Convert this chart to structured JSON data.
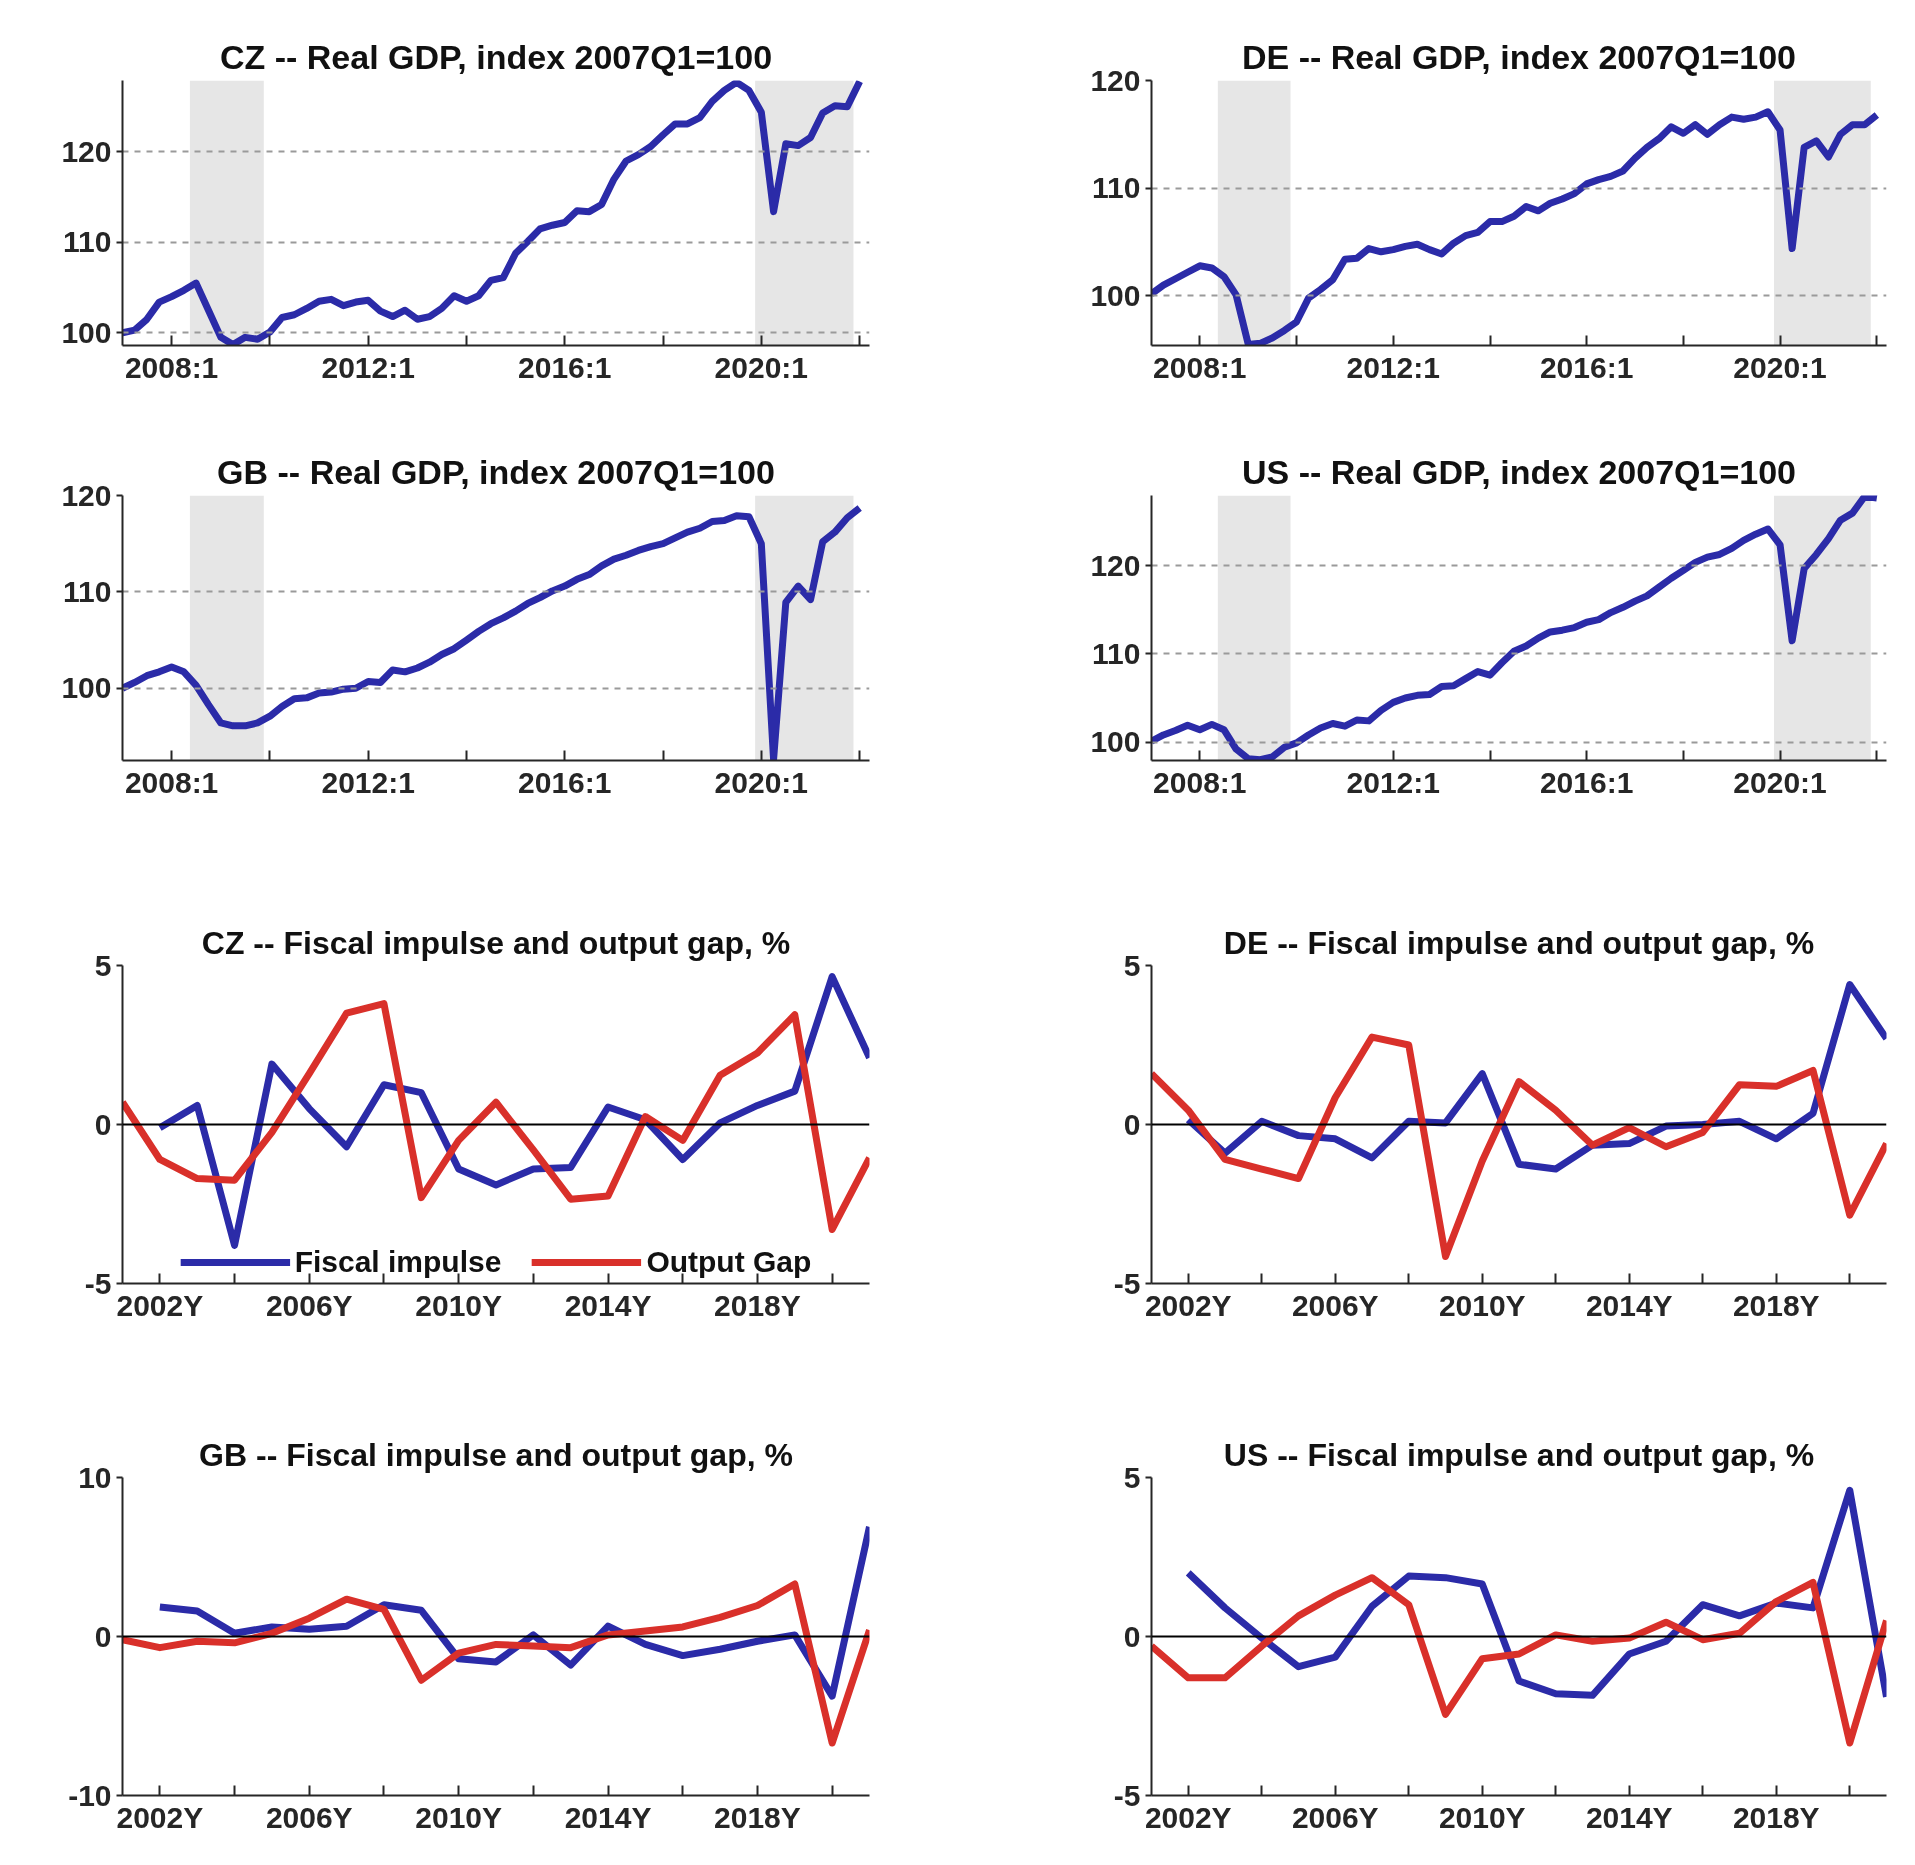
{
  "chart_data": [
    {
      "type": "line",
      "title": "CZ -- Real GDP, index 2007Q1=100",
      "grid": "y",
      "xlim": [
        "2007-01-01",
        "2022-03-15"
      ],
      "ylim": [
        98.6,
        127.9
      ],
      "yticks": [
        100,
        110,
        120
      ],
      "xticks": [
        {
          "value": "2008-01",
          "label": "2008:1"
        },
        {
          "value": "2010-01",
          "label": null
        },
        {
          "value": "2012-01",
          "label": "2012:1"
        },
        {
          "value": "2014-01",
          "label": null
        },
        {
          "value": "2016-01",
          "label": "2016:1"
        },
        {
          "value": "2018-01",
          "label": null
        },
        {
          "value": "2020-01",
          "label": "2020:1"
        },
        {
          "value": "2022-01",
          "label": null
        }
      ],
      "bands": [
        {
          "axis": "x",
          "from": "2008-05-16",
          "to": "2009-11-16",
          "color": "#e6e6e6"
        },
        {
          "axis": "x",
          "from": "2019-11-16",
          "to": "2021-11-16",
          "color": "#e6e6e6"
        }
      ],
      "x": [
        "2007-01",
        "2007-04",
        "2007-07",
        "2007-10",
        "2008-01",
        "2008-04",
        "2008-07",
        "2008-10",
        "2009-01",
        "2009-04",
        "2009-07",
        "2009-10",
        "2010-01",
        "2010-04",
        "2010-07",
        "2010-10",
        "2011-01",
        "2011-04",
        "2011-07",
        "2011-10",
        "2012-01",
        "2012-04",
        "2012-07",
        "2012-10",
        "2013-01",
        "2013-04",
        "2013-07",
        "2013-10",
        "2014-01",
        "2014-04",
        "2014-07",
        "2014-10",
        "2015-01",
        "2015-04",
        "2015-07",
        "2015-10",
        "2016-01",
        "2016-04",
        "2016-07",
        "2016-10",
        "2017-01",
        "2017-04",
        "2017-07",
        "2017-10",
        "2018-01",
        "2018-04",
        "2018-07",
        "2018-10",
        "2019-01",
        "2019-04",
        "2019-07",
        "2019-10",
        "2020-01",
        "2020-04",
        "2020-07",
        "2020-10",
        "2021-01",
        "2021-04",
        "2021-07",
        "2021-10",
        "2022-01"
      ],
      "series": [
        {
          "color": "#2b2ba8",
          "values": [
            100.0,
            100.3,
            101.5,
            103.4,
            104.0,
            104.7,
            105.5,
            102.5,
            99.5,
            98.7,
            99.5,
            99.3,
            100.1,
            101.7,
            102.0,
            102.7,
            103.5,
            103.7,
            103.0,
            103.4,
            103.6,
            102.4,
            101.8,
            102.5,
            101.5,
            101.8,
            102.7,
            104.1,
            103.5,
            104.1,
            105.8,
            106.1,
            108.8,
            110.1,
            111.5,
            111.9,
            112.2,
            113.5,
            113.4,
            114.2,
            117.0,
            119.0,
            119.7,
            120.6,
            121.9,
            123.1,
            123.1,
            123.8,
            125.6,
            126.8,
            127.7,
            126.8,
            124.4,
            113.4,
            120.9,
            120.7,
            121.6,
            124.3,
            125.1,
            125.0,
            127.8
          ]
        }
      ]
    },
    {
      "type": "line",
      "title": "DE -- Real GDP, index 2007Q1=100",
      "grid": "y",
      "xlim": [
        "2007-01-01",
        "2022-03-15"
      ],
      "ylim": [
        95.4,
        120
      ],
      "yticks": [
        100,
        110,
        120
      ],
      "xticks": [
        {
          "value": "2008-01",
          "label": "2008:1"
        },
        {
          "value": "2010-01",
          "label": null
        },
        {
          "value": "2012-01",
          "label": "2012:1"
        },
        {
          "value": "2014-01",
          "label": null
        },
        {
          "value": "2016-01",
          "label": "2016:1"
        },
        {
          "value": "2018-01",
          "label": null
        },
        {
          "value": "2020-01",
          "label": "2020:1"
        },
        {
          "value": "2022-01",
          "label": null
        }
      ],
      "bands": [
        {
          "axis": "x",
          "from": "2008-05-16",
          "to": "2009-11-16",
          "color": "#e6e6e6"
        },
        {
          "axis": "x",
          "from": "2019-11-16",
          "to": "2021-11-16",
          "color": "#e6e6e6"
        }
      ],
      "x": [
        "2007-01",
        "2007-04",
        "2007-07",
        "2007-10",
        "2008-01",
        "2008-04",
        "2008-07",
        "2008-10",
        "2009-01",
        "2009-04",
        "2009-07",
        "2009-10",
        "2010-01",
        "2010-04",
        "2010-07",
        "2010-10",
        "2011-01",
        "2011-04",
        "2011-07",
        "2011-10",
        "2012-01",
        "2012-04",
        "2012-07",
        "2012-10",
        "2013-01",
        "2013-04",
        "2013-07",
        "2013-10",
        "2014-01",
        "2014-04",
        "2014-07",
        "2014-10",
        "2015-01",
        "2015-04",
        "2015-07",
        "2015-10",
        "2016-01",
        "2016-04",
        "2016-07",
        "2016-10",
        "2017-01",
        "2017-04",
        "2017-07",
        "2017-10",
        "2018-01",
        "2018-04",
        "2018-07",
        "2018-10",
        "2019-01",
        "2019-04",
        "2019-07",
        "2019-10",
        "2020-01",
        "2020-04",
        "2020-07",
        "2020-10",
        "2021-01",
        "2021-04",
        "2021-07",
        "2021-10",
        "2022-01"
      ],
      "series": [
        {
          "color": "#2b2ba8",
          "values": [
            100.2,
            101.0,
            101.6,
            102.2,
            102.8,
            102.6,
            101.8,
            100.1,
            95.5,
            95.6,
            96.1,
            96.8,
            97.6,
            99.8,
            100.6,
            101.5,
            103.4,
            103.5,
            104.4,
            104.1,
            104.3,
            104.6,
            104.8,
            104.3,
            103.9,
            104.9,
            105.6,
            105.9,
            106.9,
            106.9,
            107.4,
            108.3,
            107.9,
            108.6,
            109.0,
            109.5,
            110.4,
            110.8,
            111.1,
            111.6,
            112.8,
            113.8,
            114.6,
            115.7,
            115.1,
            115.9,
            115.0,
            115.9,
            116.6,
            116.4,
            116.6,
            117.1,
            115.4,
            104.4,
            113.8,
            114.4,
            112.9,
            115.0,
            115.9,
            115.9,
            116.8
          ]
        }
      ]
    },
    {
      "type": "line",
      "title": "GB -- Real GDP, index 2007Q1=100",
      "grid": "y",
      "xlim": [
        "2007-01-01",
        "2022-03-15"
      ],
      "ylim": [
        92.5,
        120
      ],
      "yticks": [
        100,
        110,
        120
      ],
      "xticks": [
        {
          "value": "2008-01",
          "label": "2008:1"
        },
        {
          "value": "2010-01",
          "label": null
        },
        {
          "value": "2012-01",
          "label": "2012:1"
        },
        {
          "value": "2014-01",
          "label": null
        },
        {
          "value": "2016-01",
          "label": "2016:1"
        },
        {
          "value": "2018-01",
          "label": null
        },
        {
          "value": "2020-01",
          "label": "2020:1"
        },
        {
          "value": "2022-01",
          "label": null
        }
      ],
      "bands": [
        {
          "axis": "x",
          "from": "2008-05-16",
          "to": "2009-11-16",
          "color": "#e6e6e6"
        },
        {
          "axis": "x",
          "from": "2019-11-16",
          "to": "2021-11-16",
          "color": "#e6e6e6"
        }
      ],
      "x": [
        "2007-01",
        "2007-04",
        "2007-07",
        "2007-10",
        "2008-01",
        "2008-04",
        "2008-07",
        "2008-10",
        "2009-01",
        "2009-04",
        "2009-07",
        "2009-10",
        "2010-01",
        "2010-04",
        "2010-07",
        "2010-10",
        "2011-01",
        "2011-04",
        "2011-07",
        "2011-10",
        "2012-01",
        "2012-04",
        "2012-07",
        "2012-10",
        "2013-01",
        "2013-04",
        "2013-07",
        "2013-10",
        "2014-01",
        "2014-04",
        "2014-07",
        "2014-10",
        "2015-01",
        "2015-04",
        "2015-07",
        "2015-10",
        "2016-01",
        "2016-04",
        "2016-07",
        "2016-10",
        "2017-01",
        "2017-04",
        "2017-07",
        "2017-10",
        "2018-01",
        "2018-04",
        "2018-07",
        "2018-10",
        "2019-01",
        "2019-04",
        "2019-07",
        "2019-10",
        "2020-01",
        "2020-04",
        "2020-07",
        "2020-10",
        "2021-01",
        "2021-04",
        "2021-07",
        "2021-10",
        "2022-01"
      ],
      "series": [
        {
          "color": "#2b2ba8",
          "values": [
            100.0,
            100.6,
            101.3,
            101.7,
            102.2,
            101.7,
            100.3,
            98.3,
            96.4,
            96.1,
            96.1,
            96.4,
            97.1,
            98.1,
            98.9,
            99.0,
            99.5,
            99.6,
            99.9,
            100.0,
            100.7,
            100.6,
            101.9,
            101.7,
            102.1,
            102.7,
            103.5,
            104.1,
            105.0,
            105.9,
            106.7,
            107.3,
            108.0,
            108.8,
            109.4,
            110.1,
            110.6,
            111.3,
            111.8,
            112.7,
            113.4,
            113.8,
            114.3,
            114.7,
            115.0,
            115.6,
            116.2,
            116.6,
            117.3,
            117.4,
            117.9,
            117.8,
            115.0,
            92.6,
            108.9,
            110.6,
            109.2,
            115.2,
            116.2,
            117.7,
            118.7
          ]
        }
      ]
    },
    {
      "type": "line",
      "title": "US -- Real GDP, index 2007Q1=100",
      "grid": "y",
      "xlim": [
        "2007-01-01",
        "2022-03-15"
      ],
      "ylim": [
        97.9,
        128
      ],
      "yticks": [
        100,
        110,
        120
      ],
      "xticks": [
        {
          "value": "2008-01",
          "label": "2008:1"
        },
        {
          "value": "2010-01",
          "label": null
        },
        {
          "value": "2012-01",
          "label": "2012:1"
        },
        {
          "value": "2014-01",
          "label": null
        },
        {
          "value": "2016-01",
          "label": "2016:1"
        },
        {
          "value": "2018-01",
          "label": null
        },
        {
          "value": "2020-01",
          "label": "2020:1"
        },
        {
          "value": "2022-01",
          "label": null
        }
      ],
      "bands": [
        {
          "axis": "x",
          "from": "2008-05-16",
          "to": "2009-11-16",
          "color": "#e6e6e6"
        },
        {
          "axis": "x",
          "from": "2019-11-16",
          "to": "2021-11-16",
          "color": "#e6e6e6"
        }
      ],
      "x": [
        "2007-01",
        "2007-04",
        "2007-07",
        "2007-10",
        "2008-01",
        "2008-04",
        "2008-07",
        "2008-10",
        "2009-01",
        "2009-04",
        "2009-07",
        "2009-10",
        "2010-01",
        "2010-04",
        "2010-07",
        "2010-10",
        "2011-01",
        "2011-04",
        "2011-07",
        "2011-10",
        "2012-01",
        "2012-04",
        "2012-07",
        "2012-10",
        "2013-01",
        "2013-04",
        "2013-07",
        "2013-10",
        "2014-01",
        "2014-04",
        "2014-07",
        "2014-10",
        "2015-01",
        "2015-04",
        "2015-07",
        "2015-10",
        "2016-01",
        "2016-04",
        "2016-07",
        "2016-10",
        "2017-01",
        "2017-04",
        "2017-07",
        "2017-10",
        "2018-01",
        "2018-04",
        "2018-07",
        "2018-10",
        "2019-01",
        "2019-04",
        "2019-07",
        "2019-10",
        "2020-01",
        "2020-04",
        "2020-07",
        "2020-10",
        "2021-01",
        "2021-04",
        "2021-07",
        "2021-10",
        "2022-01"
      ],
      "series": [
        {
          "color": "#2b2ba8",
          "values": [
            100.1,
            100.8,
            101.3,
            101.9,
            101.4,
            102.0,
            101.4,
            99.2,
            98.1,
            98.0,
            98.3,
            99.4,
            99.9,
            100.8,
            101.6,
            102.1,
            101.8,
            102.5,
            102.4,
            103.6,
            104.5,
            105.0,
            105.3,
            105.4,
            106.3,
            106.4,
            107.2,
            108.0,
            107.6,
            109.0,
            110.3,
            110.9,
            111.8,
            112.5,
            112.7,
            113.0,
            113.6,
            113.9,
            114.7,
            115.3,
            116.0,
            116.6,
            117.6,
            118.6,
            119.5,
            120.4,
            121.0,
            121.3,
            122.0,
            122.9,
            123.6,
            124.2,
            122.4,
            111.5,
            119.7,
            121.3,
            123.1,
            125.2,
            126.0,
            127.9,
            127.7
          ]
        }
      ]
    },
    {
      "type": "line",
      "title": "CZ -- Fiscal impulse and output gap, %",
      "legend": "bottom",
      "xlim": [
        2001,
        2021
      ],
      "ylim": [
        -5,
        5
      ],
      "yticks": [
        -5,
        0,
        5
      ],
      "xticks": [
        {
          "value": 2002,
          "label": "2002Y"
        },
        {
          "value": 2004,
          "label": null
        },
        {
          "value": 2006,
          "label": "2006Y"
        },
        {
          "value": 2008,
          "label": null
        },
        {
          "value": 2010,
          "label": "2010Y"
        },
        {
          "value": 2012,
          "label": null
        },
        {
          "value": 2014,
          "label": "2014Y"
        },
        {
          "value": 2016,
          "label": null
        },
        {
          "value": 2018,
          "label": "2018Y"
        },
        {
          "value": 2020,
          "label": null
        }
      ],
      "ref_lines": [
        {
          "axis": "y",
          "value": 0,
          "color": "#000000"
        }
      ],
      "x": [
        2001,
        2002,
        2003,
        2004,
        2005,
        2006,
        2007,
        2008,
        2009,
        2010,
        2011,
        2012,
        2013,
        2014,
        2015,
        2016,
        2017,
        2018,
        2019,
        2020,
        2021
      ],
      "series": [
        {
          "name": "Fiscal impulse",
          "color": "#2b2ba8",
          "values": [
            null,
            -0.1,
            0.6,
            -3.8,
            1.9,
            0.5,
            -0.7,
            1.25,
            1.0,
            -1.4,
            -1.9,
            -1.4,
            -1.35,
            0.55,
            0.15,
            -1.1,
            0.05,
            0.6,
            1.05,
            4.65,
            2.1
          ]
        },
        {
          "name": "Output Gap",
          "color": "#d9302a",
          "values": [
            0.7,
            -1.1,
            -1.7,
            -1.75,
            -0.25,
            1.6,
            3.5,
            3.8,
            -2.3,
            -0.5,
            0.7,
            -0.8,
            -2.35,
            -2.25,
            0.25,
            -0.5,
            1.55,
            2.25,
            3.45,
            -3.3,
            -1.05
          ]
        }
      ]
    },
    {
      "type": "line",
      "title": "DE -- Fiscal impulse and output gap, %",
      "xlim": [
        2001,
        2021
      ],
      "ylim": [
        -5,
        5
      ],
      "yticks": [
        -5,
        0,
        5
      ],
      "xticks": [
        {
          "value": 2002,
          "label": "2002Y"
        },
        {
          "value": 2004,
          "label": null
        },
        {
          "value": 2006,
          "label": "2006Y"
        },
        {
          "value": 2008,
          "label": null
        },
        {
          "value": 2010,
          "label": "2010Y"
        },
        {
          "value": 2012,
          "label": null
        },
        {
          "value": 2014,
          "label": "2014Y"
        },
        {
          "value": 2016,
          "label": null
        },
        {
          "value": 2018,
          "label": "2018Y"
        },
        {
          "value": 2020,
          "label": null
        }
      ],
      "ref_lines": [
        {
          "axis": "y",
          "value": 0,
          "color": "#000000"
        }
      ],
      "x": [
        2001,
        2002,
        2003,
        2004,
        2005,
        2006,
        2007,
        2008,
        2009,
        2010,
        2011,
        2012,
        2013,
        2014,
        2015,
        2016,
        2017,
        2018,
        2019,
        2020,
        2021
      ],
      "series": [
        {
          "color": "#2b2ba8",
          "values": [
            null,
            0.15,
            -0.9,
            0.1,
            -0.35,
            -0.45,
            -1.05,
            0.1,
            0.05,
            1.6,
            -1.25,
            -1.4,
            -0.65,
            -0.6,
            -0.05,
            0.0,
            0.1,
            -0.45,
            0.35,
            4.4,
            2.7
          ]
        },
        {
          "color": "#d9302a",
          "values": [
            1.6,
            0.45,
            -1.1,
            -1.4,
            -1.7,
            0.85,
            2.75,
            2.5,
            -4.15,
            -1.15,
            1.35,
            0.45,
            -0.65,
            -0.1,
            -0.7,
            -0.25,
            1.25,
            1.2,
            1.7,
            -2.85,
            -0.6
          ]
        }
      ]
    },
    {
      "type": "line",
      "title": "GB -- Fiscal impulse and output gap, %",
      "xlim": [
        2001,
        2021
      ],
      "ylim": [
        -10,
        10
      ],
      "yticks": [
        -10,
        0,
        10
      ],
      "xticks": [
        {
          "value": 2002,
          "label": "2002Y"
        },
        {
          "value": 2004,
          "label": null
        },
        {
          "value": 2006,
          "label": "2006Y"
        },
        {
          "value": 2008,
          "label": null
        },
        {
          "value": 2010,
          "label": "2010Y"
        },
        {
          "value": 2012,
          "label": null
        },
        {
          "value": 2014,
          "label": "2014Y"
        },
        {
          "value": 2016,
          "label": null
        },
        {
          "value": 2018,
          "label": "2018Y"
        },
        {
          "value": 2020,
          "label": null
        }
      ],
      "ref_lines": [
        {
          "axis": "y",
          "value": 0,
          "color": "#000000"
        }
      ],
      "x": [
        2001,
        2002,
        2003,
        2004,
        2005,
        2006,
        2007,
        2008,
        2009,
        2010,
        2011,
        2012,
        2013,
        2014,
        2015,
        2016,
        2017,
        2018,
        2019,
        2020,
        2021
      ],
      "series": [
        {
          "color": "#2b2ba8",
          "values": [
            null,
            1.85,
            1.6,
            0.2,
            0.6,
            0.45,
            0.65,
            2.0,
            1.65,
            -1.4,
            -1.6,
            0.1,
            -1.8,
            0.65,
            -0.5,
            -1.2,
            -0.8,
            -0.3,
            0.1,
            -3.75,
            6.9
          ]
        },
        {
          "color": "#d9302a",
          "values": [
            -0.2,
            -0.7,
            -0.3,
            -0.4,
            0.2,
            1.15,
            2.35,
            1.7,
            -2.75,
            -1.05,
            -0.5,
            -0.6,
            -0.7,
            0.1,
            0.35,
            0.6,
            1.2,
            1.95,
            3.3,
            -6.7,
            0.4
          ]
        }
      ]
    },
    {
      "type": "line",
      "title": "US -- Fiscal impulse and output gap, %",
      "xlim": [
        2001,
        2021
      ],
      "ylim": [
        -5,
        5
      ],
      "yticks": [
        -5,
        0,
        5
      ],
      "xticks": [
        {
          "value": 2002,
          "label": "2002Y"
        },
        {
          "value": 2004,
          "label": null
        },
        {
          "value": 2006,
          "label": "2006Y"
        },
        {
          "value": 2008,
          "label": null
        },
        {
          "value": 2010,
          "label": "2010Y"
        },
        {
          "value": 2012,
          "label": null
        },
        {
          "value": 2014,
          "label": "2014Y"
        },
        {
          "value": 2016,
          "label": null
        },
        {
          "value": 2018,
          "label": "2018Y"
        },
        {
          "value": 2020,
          "label": null
        }
      ],
      "ref_lines": [
        {
          "axis": "y",
          "value": 0,
          "color": "#000000"
        }
      ],
      "x": [
        2001,
        2002,
        2003,
        2004,
        2005,
        2006,
        2007,
        2008,
        2009,
        2010,
        2011,
        2012,
        2013,
        2014,
        2015,
        2016,
        2017,
        2018,
        2019,
        2020,
        2021
      ],
      "series": [
        {
          "color": "#2b2ba8",
          "values": [
            null,
            2.0,
            0.9,
            -0.05,
            -0.95,
            -0.65,
            0.95,
            1.9,
            1.85,
            1.65,
            -1.4,
            -1.8,
            -1.85,
            -0.55,
            -0.15,
            1.0,
            0.65,
            1.05,
            0.9,
            4.6,
            -1.9
          ]
        },
        {
          "color": "#d9302a",
          "values": [
            -0.3,
            -1.3,
            -1.3,
            -0.3,
            0.65,
            1.3,
            1.85,
            1.0,
            -2.45,
            -0.7,
            -0.55,
            0.05,
            -0.15,
            -0.05,
            0.45,
            -0.1,
            0.1,
            1.1,
            1.7,
            -3.35,
            0.5
          ]
        }
      ]
    }
  ]
}
